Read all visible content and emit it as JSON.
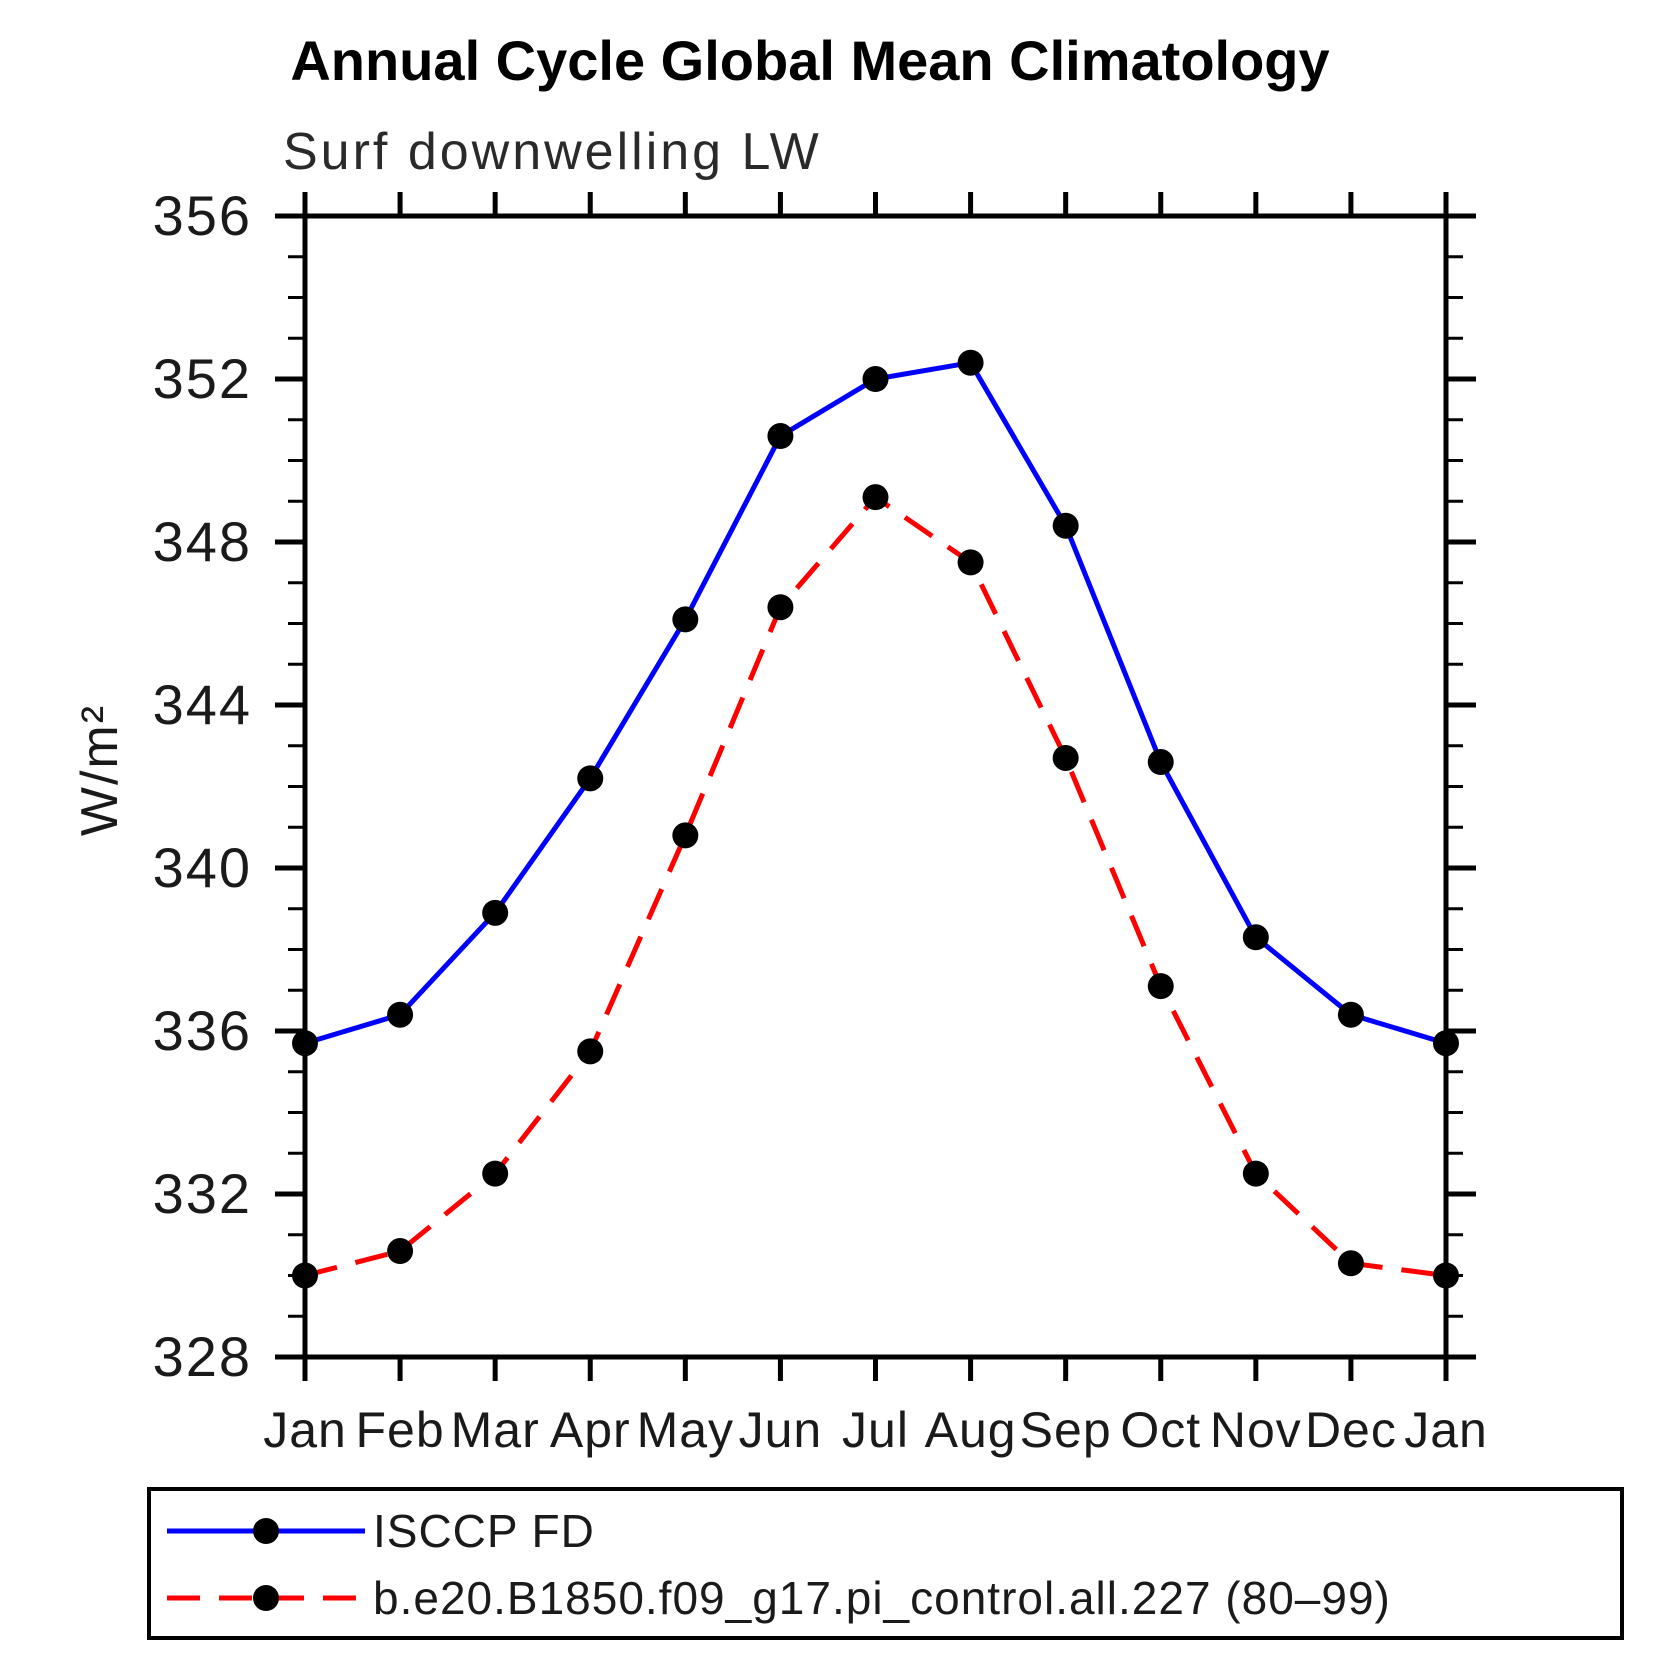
{
  "chart_data": {
    "type": "line",
    "title": "Annual Cycle Global Mean Climatology",
    "subtitle": "Surf downwelling LW",
    "xlabel": "",
    "ylabel": "W/m²",
    "x_categories": [
      "Jan",
      "Feb",
      "Mar",
      "Apr",
      "May",
      "Jun",
      "Jul",
      "Aug",
      "Sep",
      "Oct",
      "Nov",
      "Dec",
      "Jan"
    ],
    "ylim": [
      328,
      356
    ],
    "y_major_ticks": [
      328,
      332,
      336,
      340,
      344,
      348,
      352,
      356
    ],
    "y_minor_step": 1,
    "grid": false,
    "legend_position": "bottom-left-box",
    "series": [
      {
        "name": "ISCCP FD",
        "color": "#0000ff",
        "style": "solid",
        "marker": "circle",
        "marker_color": "#000000",
        "values": [
          335.7,
          336.4,
          338.9,
          342.2,
          346.1,
          350.6,
          352.0,
          352.4,
          348.4,
          342.6,
          338.3,
          336.4,
          335.7
        ]
      },
      {
        "name": "b.e20.B1850.f09_g17.pi_control.all.227 (80–99)",
        "color": "#ff0000",
        "style": "dashed",
        "marker": "circle",
        "marker_color": "#000000",
        "values": [
          330.0,
          330.6,
          332.5,
          335.5,
          340.8,
          346.4,
          349.1,
          347.5,
          342.7,
          337.1,
          332.5,
          330.3,
          330.0
        ]
      }
    ],
    "colors": {
      "axis": "#000000",
      "text": "#1a1a1a"
    }
  }
}
